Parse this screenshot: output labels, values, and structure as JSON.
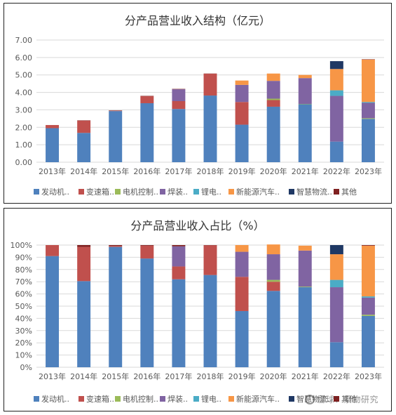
{
  "chart_data": [
    {
      "type": "bar",
      "stacked": true,
      "title": "分产品营业收入结构（亿元）",
      "categories": [
        "2013年",
        "2014年",
        "2015年",
        "2016年",
        "2017年",
        "2018年",
        "2019年",
        "2020年",
        "2021年",
        "2022年",
        "2023年"
      ],
      "ylim": [
        0,
        7
      ],
      "yticks": [
        "0.00",
        "1.00",
        "2.00",
        "3.00",
        "4.00",
        "5.00",
        "6.00",
        "7.00"
      ],
      "grid": true,
      "legend_position": "bottom",
      "series": [
        {
          "name": "发动机..",
          "color": "#4F81BD",
          "values": [
            1.95,
            1.68,
            2.93,
            3.38,
            3.05,
            3.82,
            2.15,
            3.18,
            3.32,
            1.18,
            2.48
          ]
        },
        {
          "name": "变速箱..",
          "color": "#C0504D",
          "values": [
            0.18,
            0.7,
            0.02,
            0.4,
            0.45,
            1.25,
            1.3,
            0.38,
            0.0,
            0.0,
            0.0
          ]
        },
        {
          "name": "电机控制..",
          "color": "#9BBB59",
          "values": [
            0,
            0,
            0,
            0,
            0,
            0,
            0,
            0.08,
            0.02,
            0,
            0.04
          ]
        },
        {
          "name": "焊装..",
          "color": "#8064A2",
          "values": [
            0,
            0,
            0,
            0,
            0.68,
            0,
            0.98,
            1.02,
            1.48,
            2.62,
            0.88
          ]
        },
        {
          "name": "锂电..",
          "color": "#4BACC6",
          "values": [
            0,
            0,
            0,
            0,
            0,
            0,
            0,
            0,
            0,
            0.32,
            0.05
          ]
        },
        {
          "name": "新能源汽车..",
          "color": "#F79646",
          "values": [
            0,
            0,
            0,
            0,
            0,
            0,
            0.25,
            0.42,
            0.18,
            1.22,
            2.43
          ]
        },
        {
          "name": "智慧物流..",
          "color": "#1F3864",
          "values": [
            0,
            0,
            0,
            0,
            0,
            0,
            0,
            0,
            0,
            0.45,
            0
          ]
        },
        {
          "name": "其他",
          "color": "#7F2020",
          "values": [
            0,
            0.02,
            0.02,
            0.02,
            0.02,
            0.01,
            0,
            0,
            0,
            0,
            0.02
          ]
        }
      ]
    },
    {
      "type": "bar",
      "stacked": true,
      "percent": true,
      "title": "分产品营业收入占比（%）",
      "categories": [
        "2013年",
        "2014年",
        "2015年",
        "2016年",
        "2017年",
        "2018年",
        "2019年",
        "2020年",
        "2021年",
        "2022年",
        "2023年"
      ],
      "ylim": [
        0,
        100
      ],
      "yticks": [
        "0%",
        "10%",
        "20%",
        "30%",
        "40%",
        "50%",
        "60%",
        "70%",
        "80%",
        "90%",
        "100%"
      ],
      "grid": true,
      "legend_position": "bottom",
      "series": [
        {
          "name": "发动机..",
          "color": "#4F81BD",
          "values": [
            91,
            70.5,
            98.5,
            89,
            72,
            75.5,
            46,
            62.5,
            65.5,
            20.5,
            42
          ]
        },
        {
          "name": "变速箱..",
          "color": "#C0504D",
          "values": [
            9,
            28,
            0.8,
            10.5,
            10.5,
            24.3,
            28,
            7.5,
            0,
            0,
            0
          ]
        },
        {
          "name": "电机控制..",
          "color": "#9BBB59",
          "values": [
            0,
            0,
            0,
            0,
            0,
            0,
            0,
            1.5,
            0.5,
            0,
            1
          ]
        },
        {
          "name": "焊装..",
          "color": "#8064A2",
          "values": [
            0,
            0,
            0,
            0,
            16.5,
            0,
            20.5,
            21,
            29.5,
            45,
            14
          ]
        },
        {
          "name": "锂电..",
          "color": "#4BACC6",
          "values": [
            0,
            0,
            0,
            0,
            0,
            0,
            0,
            0,
            0,
            6,
            1
          ]
        },
        {
          "name": "新能源汽车..",
          "color": "#F79646",
          "values": [
            0,
            0,
            0,
            0,
            0,
            0,
            5.5,
            8,
            4,
            21,
            41.5
          ]
        },
        {
          "name": "智慧物流..",
          "color": "#1F3864",
          "values": [
            0,
            0,
            0,
            0,
            0,
            0,
            0,
            0,
            0,
            7.5,
            0
          ]
        },
        {
          "name": "其他",
          "color": "#7F2020",
          "values": [
            0,
            1.5,
            0.7,
            0.5,
            1,
            0.2,
            0,
            0,
            0,
            0,
            0.5
          ]
        }
      ]
    }
  ],
  "watermark": "雪球：景物研究"
}
